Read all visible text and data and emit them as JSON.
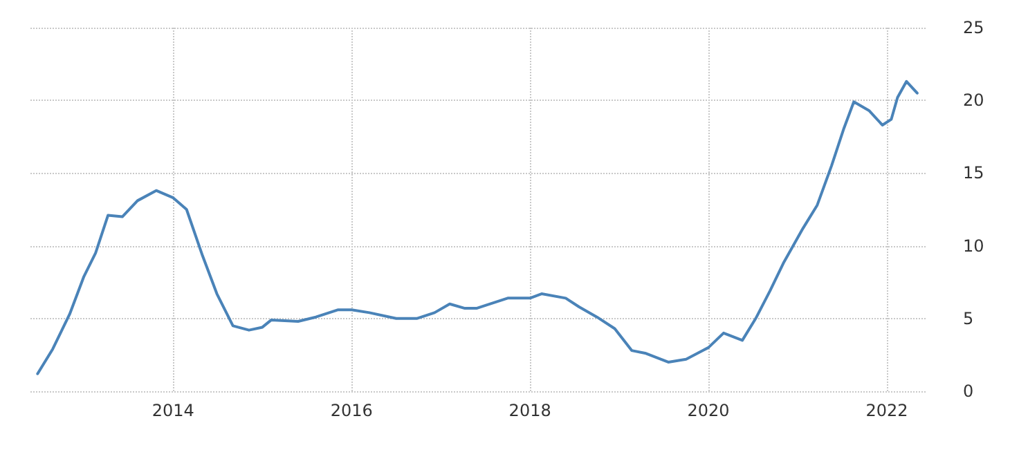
{
  "chart_data": {
    "type": "line",
    "x": [
      2012.48,
      2012.65,
      2012.84,
      2013.0,
      2013.13,
      2013.27,
      2013.43,
      2013.6,
      2013.81,
      2014.0,
      2014.15,
      2014.33,
      2014.49,
      2014.67,
      2014.85,
      2015.0,
      2015.1,
      2015.4,
      2015.6,
      2015.85,
      2016.0,
      2016.2,
      2016.5,
      2016.73,
      2016.93,
      2017.1,
      2017.27,
      2017.4,
      2017.5,
      2017.75,
      2018.0,
      2018.13,
      2018.4,
      2018.55,
      2018.75,
      2018.95,
      2019.14,
      2019.3,
      2019.55,
      2019.75,
      2020.0,
      2020.17,
      2020.38,
      2020.53,
      2020.69,
      2020.84,
      2021.06,
      2021.22,
      2021.38,
      2021.52,
      2021.63,
      2021.8,
      2021.95,
      2022.05,
      2022.12,
      2022.22,
      2022.34
    ],
    "series": [
      {
        "color": "#4a83b8",
        "values": [
          1.2,
          2.9,
          5.3,
          7.9,
          9.5,
          12.1,
          12.0,
          13.1,
          13.8,
          13.3,
          12.5,
          9.3,
          6.7,
          4.5,
          4.2,
          4.4,
          4.9,
          4.8,
          5.1,
          5.6,
          5.6,
          5.4,
          5.0,
          5.0,
          5.4,
          6.0,
          5.7,
          5.7,
          5.9,
          6.4,
          6.4,
          6.7,
          6.4,
          5.8,
          5.1,
          4.3,
          2.8,
          2.6,
          2.0,
          2.2,
          3.0,
          4.0,
          3.5,
          5.0,
          6.9,
          8.8,
          11.2,
          12.8,
          15.5,
          18.1,
          19.9,
          19.3,
          18.3,
          18.7,
          20.2,
          21.3,
          20.5
        ]
      }
    ],
    "xlim": [
      2012.4,
      2022.45
    ],
    "xticks": [
      2014,
      2016,
      2018,
      2020,
      2022
    ],
    "ylim": [
      0,
      25
    ],
    "yticks": [
      0,
      5,
      10,
      15,
      20,
      25
    ],
    "grid": true,
    "marker": "none",
    "line_style": "solid"
  }
}
